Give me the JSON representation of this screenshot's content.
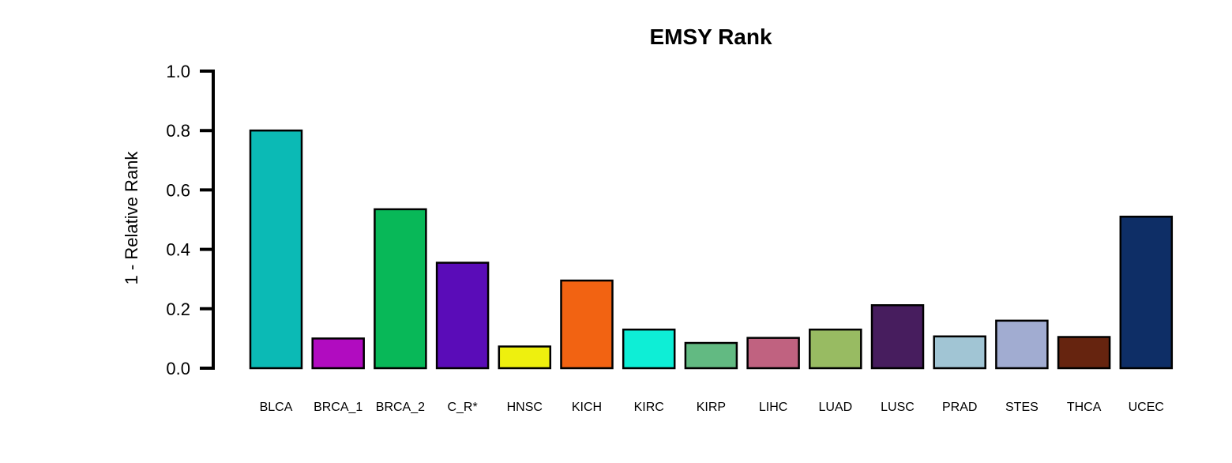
{
  "chart_data": {
    "type": "bar",
    "title": "EMSY Rank",
    "xlabel": "",
    "ylabel": "1 - Relative Rank",
    "ylim": [
      0,
      1
    ],
    "yticks": [
      "0.0",
      "0.2",
      "0.4",
      "0.6",
      "0.8",
      "1.0"
    ],
    "grid": false,
    "categories": [
      "BLCA",
      "BRCA_1",
      "BRCA_2",
      "C_R*",
      "HNSC",
      "KICH",
      "KIRC",
      "KIRP",
      "LIHC",
      "LUAD",
      "LUSC",
      "PRAD",
      "STES",
      "THCA",
      "UCEC"
    ],
    "values": [
      0.8,
      0.1,
      0.535,
      0.355,
      0.073,
      0.295,
      0.13,
      0.085,
      0.102,
      0.13,
      0.212,
      0.107,
      0.16,
      0.105,
      0.51
    ],
    "colors": [
      "#0bbab5",
      "#b10cc0",
      "#08b858",
      "#5a0cb8",
      "#eef00e",
      "#f26312",
      "#0eeed6",
      "#62ba82",
      "#c06280",
      "#98bb62",
      "#471d5e",
      "#a1c5d4",
      "#a1acd1",
      "#66240f",
      "#0e2e66"
    ]
  }
}
